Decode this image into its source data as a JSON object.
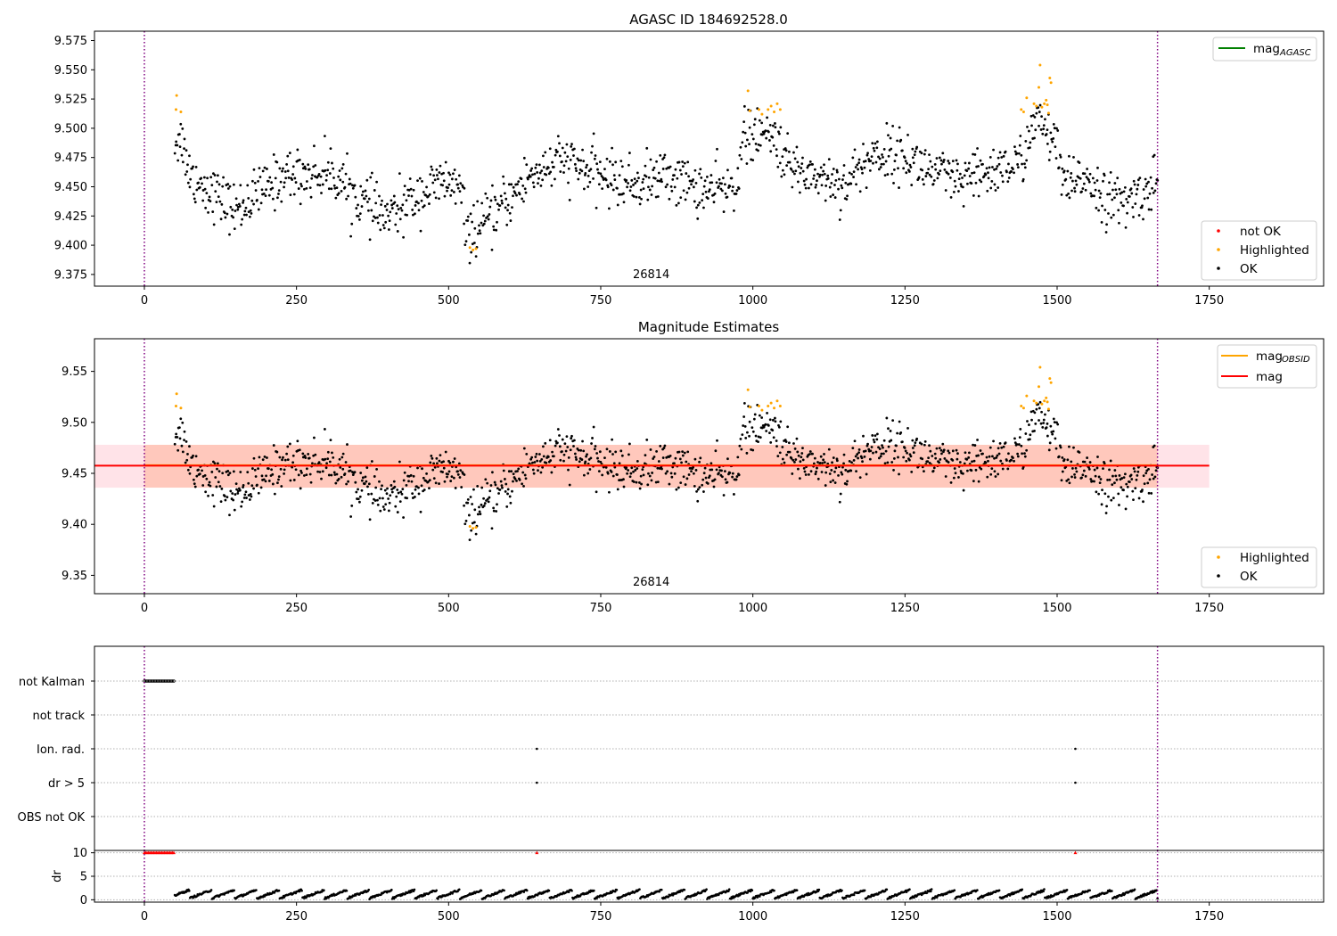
{
  "chart_data": [
    {
      "panel": "top",
      "type": "scatter",
      "title": "AGASC ID 184692528.0",
      "xlim": [
        -82,
        1938
      ],
      "ylim": [
        9.365,
        9.583
      ],
      "xticks": [
        0,
        250,
        500,
        750,
        1000,
        1250,
        1500,
        1750
      ],
      "yticks": [
        9.375,
        9.4,
        9.425,
        9.45,
        9.475,
        9.5,
        9.525,
        9.55,
        9.575
      ],
      "ytick_decimals": 3,
      "obsid_label": "26814",
      "obsid_label_x": 833,
      "vlines": [
        0,
        1665
      ],
      "legend_upper": {
        "position": "upper-right",
        "entries": [
          {
            "label": "mag",
            "sub": "AGASC",
            "color": "#008000",
            "kind": "line"
          }
        ]
      },
      "legend_lower": {
        "position": "lower-right",
        "entries": [
          {
            "label": "not OK",
            "color": "#ff0000",
            "kind": "dot"
          },
          {
            "label": "Highlighted",
            "color": "#ffa500",
            "kind": "dot"
          },
          {
            "label": "OK",
            "color": "#000000",
            "kind": "dot"
          }
        ]
      },
      "series": [
        {
          "name": "OK",
          "color": "#000000",
          "kind": "scatter-generated",
          "x_range": [
            50,
            1665
          ],
          "n": 1300
        },
        {
          "name": "Highlighted",
          "color": "#ffa500",
          "kind": "scatter",
          "points": [
            [
              52,
              9.516
            ],
            [
              53,
              9.528
            ],
            [
              60,
              9.514
            ],
            [
              535,
              9.398
            ],
            [
              540,
              9.396
            ],
            [
              545,
              9.397
            ],
            [
              992,
              9.532
            ],
            [
              995,
              9.515
            ],
            [
              1010,
              9.516
            ],
            [
              1015,
              9.512
            ],
            [
              1025,
              9.516
            ],
            [
              1030,
              9.519
            ],
            [
              1035,
              9.514
            ],
            [
              1040,
              9.521
            ],
            [
              1045,
              9.516
            ],
            [
              1441,
              9.516
            ],
            [
              1445,
              9.514
            ],
            [
              1450,
              9.526
            ],
            [
              1462,
              9.521
            ],
            [
              1466,
              9.519
            ],
            [
              1470,
              9.535
            ],
            [
              1472,
              9.554
            ],
            [
              1475,
              9.518
            ],
            [
              1479,
              9.521
            ],
            [
              1482,
              9.524
            ],
            [
              1484,
              9.52
            ],
            [
              1486,
              9.513
            ],
            [
              1488,
              9.543
            ],
            [
              1490,
              9.539
            ]
          ]
        }
      ]
    },
    {
      "panel": "middle",
      "type": "scatter",
      "title": "Magnitude Estimates",
      "xlim": [
        -82,
        1938
      ],
      "ylim": [
        9.332,
        9.582
      ],
      "xticks": [
        0,
        250,
        500,
        750,
        1000,
        1250,
        1500,
        1750
      ],
      "yticks": [
        9.35,
        9.4,
        9.45,
        9.5,
        9.55
      ],
      "ytick_decimals": 2,
      "obsid_label": "26814",
      "obsid_label_x": 833,
      "vlines": [
        0,
        1665
      ],
      "bands": [
        {
          "x": [
            -82,
            1750
          ],
          "y": [
            9.436,
            9.478
          ],
          "color": "#ffc0cb",
          "opacity": 0.45
        },
        {
          "x": [
            0,
            1665
          ],
          "y": [
            9.436,
            9.478
          ],
          "color": "#ffa07a",
          "opacity": 0.4
        }
      ],
      "hlines": [
        {
          "name": "mag_OBSID",
          "x": [
            0,
            1665
          ],
          "y": 9.458,
          "color": "#ffa500"
        },
        {
          "name": "mag",
          "x": [
            -82,
            1750
          ],
          "y": 9.4575,
          "color": "#ff0000"
        }
      ],
      "legend_upper": {
        "position": "upper-right",
        "entries": [
          {
            "label": "mag",
            "sub": "OBSID",
            "color": "#ffa500",
            "kind": "line"
          },
          {
            "label": "mag",
            "sub": "",
            "color": "#ff0000",
            "kind": "line"
          }
        ]
      },
      "legend_lower": {
        "position": "lower-right",
        "entries": [
          {
            "label": "Highlighted",
            "color": "#ffa500",
            "kind": "dot"
          },
          {
            "label": "OK",
            "color": "#000000",
            "kind": "dot"
          }
        ]
      },
      "series": [
        {
          "name": "OK",
          "color": "#000000",
          "kind": "scatter-generated",
          "x_range": [
            50,
            1665
          ],
          "n": 1300
        },
        {
          "name": "Highlighted",
          "color": "#ffa500",
          "kind": "scatter-same-as-top"
        }
      ]
    },
    {
      "panel": "flags",
      "type": "scatter",
      "xlim": [
        -82,
        1938
      ],
      "categories": [
        "not Kalman",
        "not track",
        "Ion. rad.",
        "dr > 5",
        "OBS not OK"
      ],
      "vlines": [
        0,
        1665
      ],
      "series": [
        {
          "name": "not Kalman",
          "color": "#000000",
          "x_range": [
            0,
            50
          ]
        },
        {
          "name": "Ion. rad.",
          "color": "#000000",
          "x": [
            645,
            1530
          ]
        },
        {
          "name": "dr > 5",
          "color": "#000000",
          "x": [
            645,
            1530
          ]
        }
      ]
    },
    {
      "panel": "dr",
      "type": "scatter",
      "ylabel": "dr",
      "xlim": [
        -82,
        1938
      ],
      "ylim": [
        -0.5,
        10.5
      ],
      "xticks": [
        0,
        250,
        500,
        750,
        1000,
        1250,
        1500,
        1750
      ],
      "yticks": [
        0,
        5,
        10
      ],
      "vlines": [
        0,
        1665
      ],
      "series": [
        {
          "name": "dr",
          "color": "#000000",
          "kind": "scatter-generated",
          "x_range": [
            50,
            1665
          ]
        },
        {
          "name": "dr clipped",
          "color": "#ff0000",
          "points": [
            [
              0,
              10
            ],
            [
              50,
              10
            ],
            [
              645,
              10
            ],
            [
              1530,
              10
            ]
          ]
        }
      ]
    }
  ]
}
